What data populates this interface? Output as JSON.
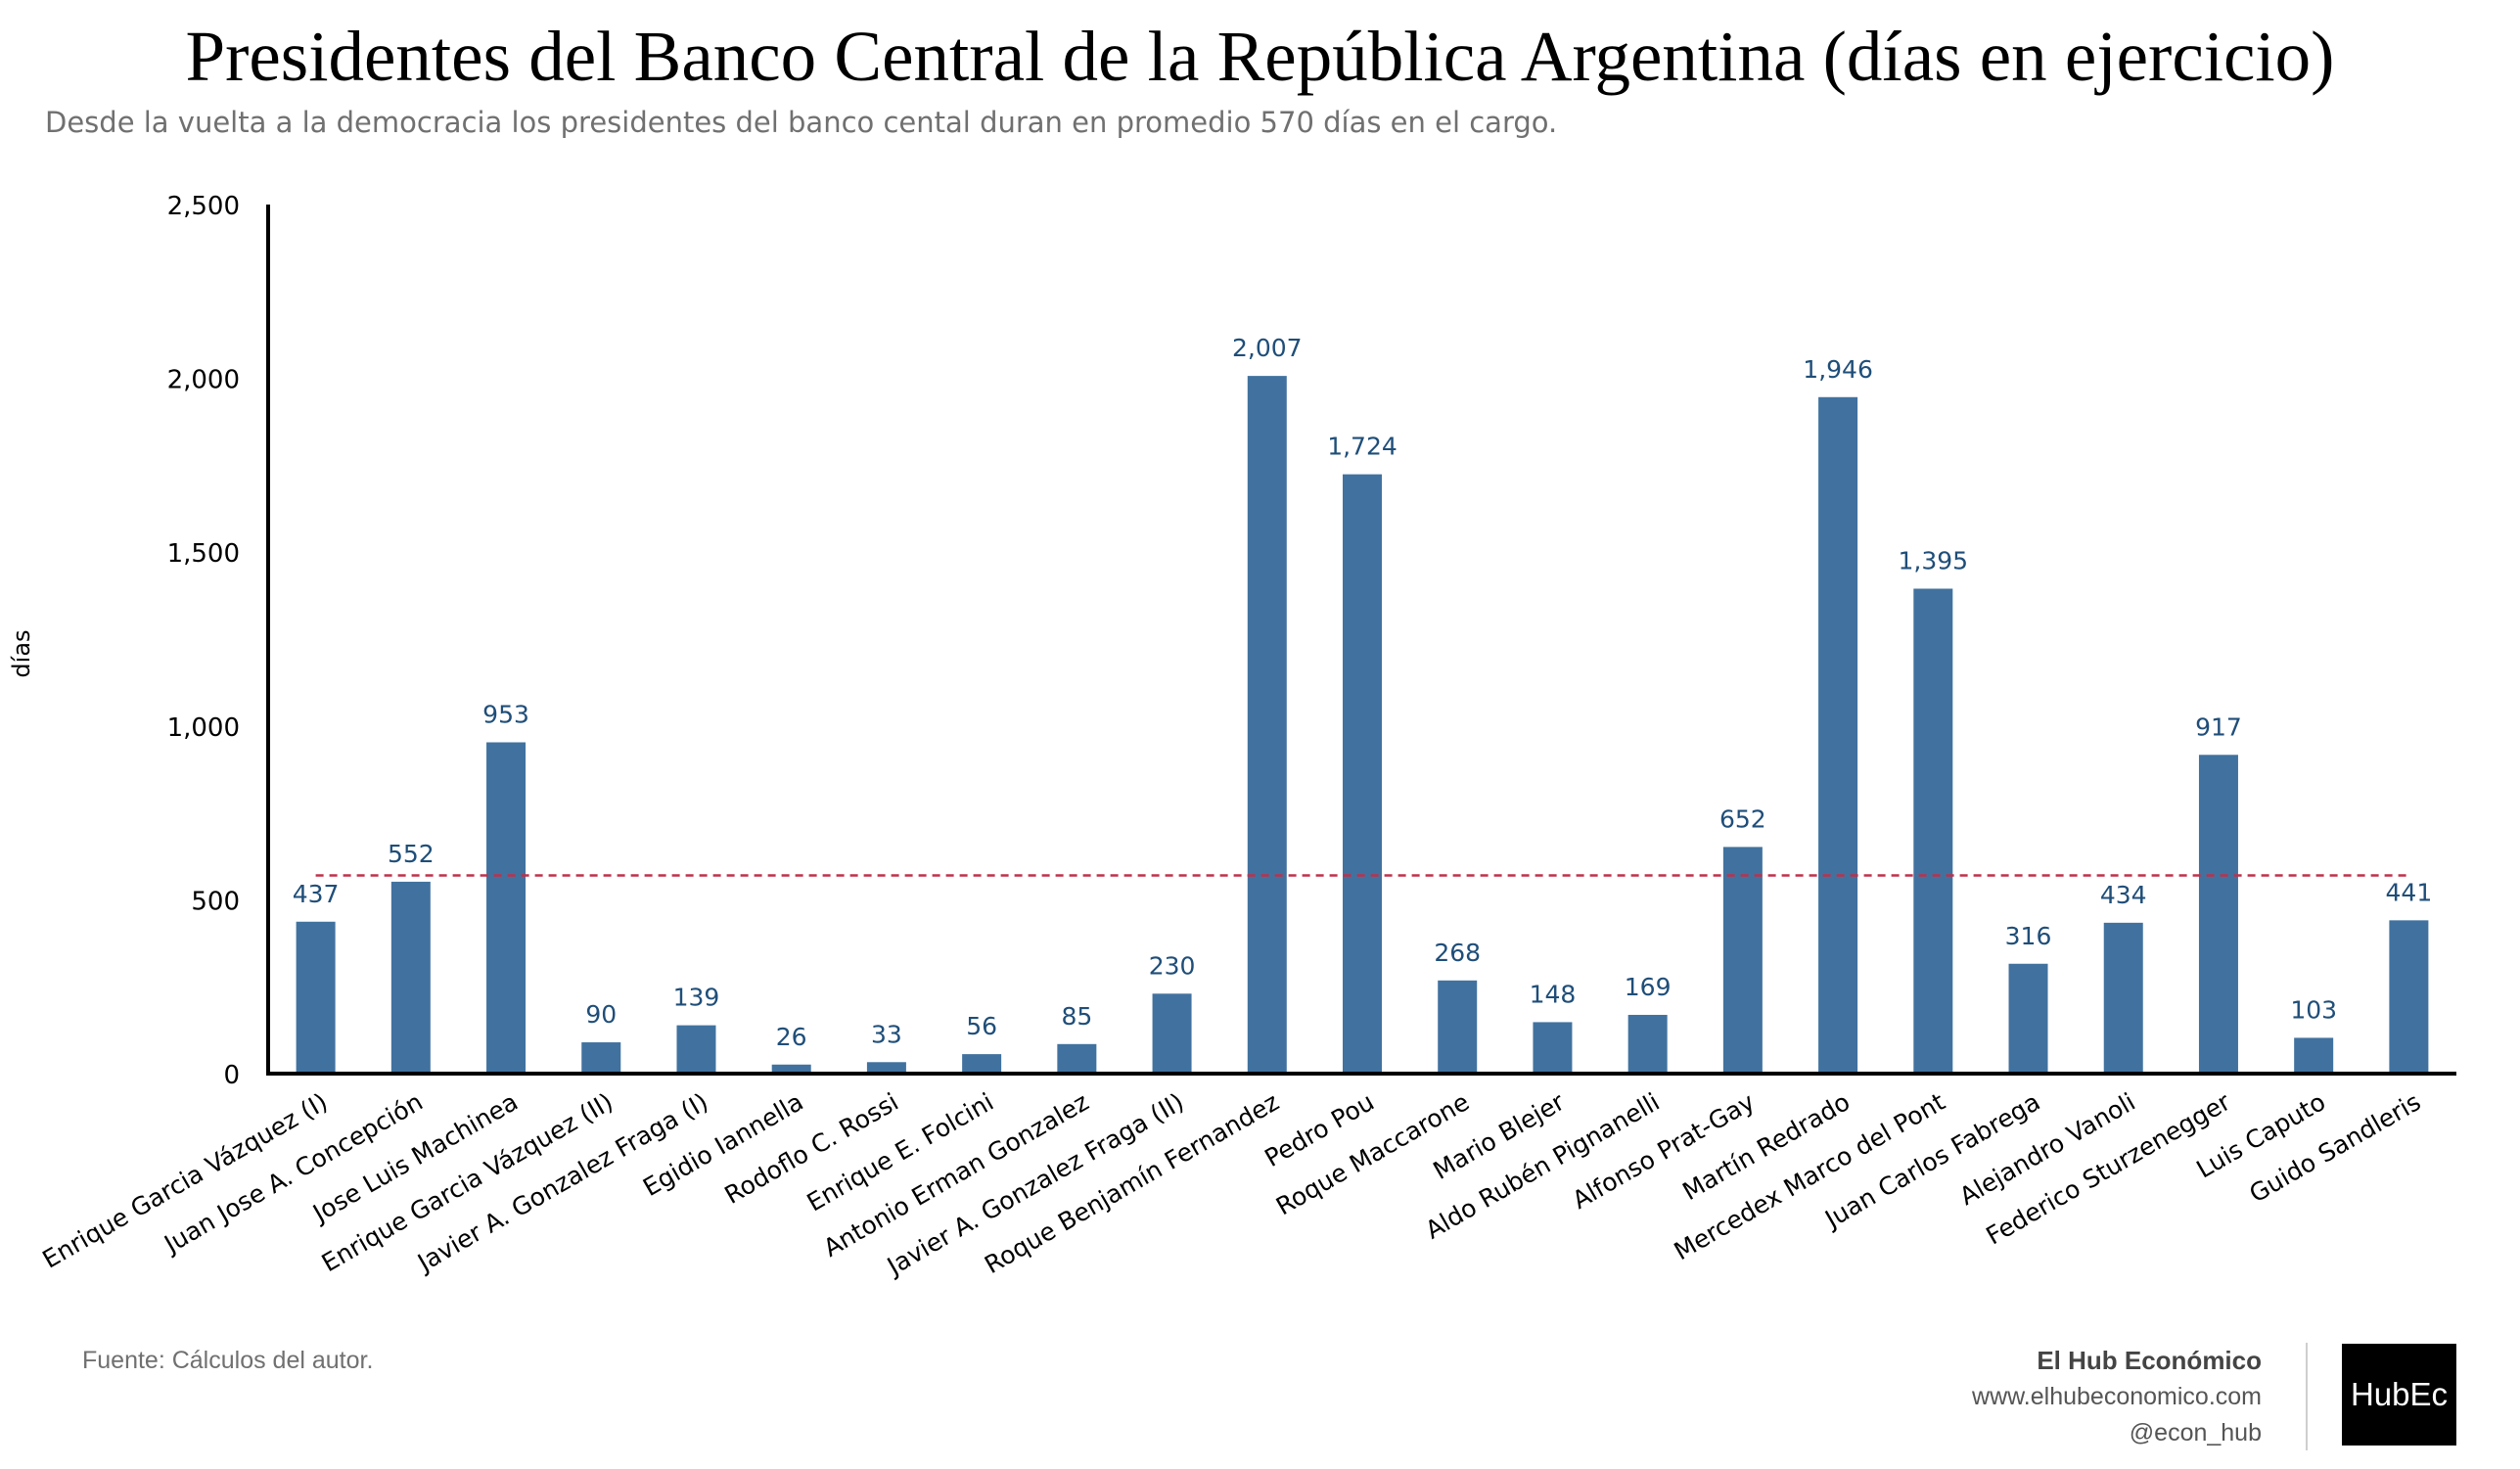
{
  "title": "Presidentes del Banco Central de la República Argentina (días en ejercicio)",
  "subtitle": "Desde la vuelta a la democracia los presidentes del banco cental duran en promedio 570 días en el cargo.",
  "footer": {
    "source": "Fuente: Cálculos del autor.",
    "brand_name": "El Hub Económico",
    "website": "www.elhubeconomico.com",
    "handle": "@econ_hub",
    "logo_text": "HubEc"
  },
  "colors": {
    "bar": "#41729f",
    "label": "#1f4e79",
    "average_line": "#c0304a",
    "axis": "#000000"
  },
  "chart_data": {
    "type": "bar",
    "ylabel": "días",
    "xlabel": "",
    "ylim": [
      0,
      2500
    ],
    "yticks": [
      0,
      500,
      1000,
      1500,
      2000,
      2500
    ],
    "ytick_labels": [
      "0",
      "500",
      "1,000",
      "1,500",
      "2,000",
      "2,500"
    ],
    "average": 570,
    "average_line_style": "dashed",
    "grid": false,
    "categories": [
      "Enrique Garcia Vázquez (I)",
      "Juan Jose A. Concepción",
      "Jose Luis Machinea",
      "Enrique Garcia Vázquez (II)",
      "Javier A. Gonzalez Fraga (I)",
      "Egidio Iannella",
      "Rodoflo C. Rossi",
      "Enrique E. Folcini",
      "Antonio Erman Gonzalez",
      "Javier A. Gonzalez Fraga (II)",
      "Roque Benjamín Fernandez",
      "Pedro Pou",
      "Roque Maccarone",
      "Mario Blejer",
      "Aldo Rubén Pignanelli",
      "Alfonso Prat-Gay",
      "Martín Redrado",
      "Mercedex Marco del Pont",
      "Juan Carlos Fabrega",
      "Alejandro Vanoli",
      "Federico Sturzenegger",
      "Luis Caputo",
      "Guido Sandleris"
    ],
    "values": [
      437,
      552,
      953,
      90,
      139,
      26,
      33,
      56,
      85,
      230,
      2007,
      1724,
      268,
      148,
      169,
      652,
      1946,
      1395,
      316,
      434,
      917,
      103,
      441
    ],
    "value_labels": [
      "437",
      "552",
      "953",
      "90",
      "139",
      "26",
      "33",
      "56",
      "85",
      "230",
      "2,007",
      "1,724",
      "268",
      "148",
      "169",
      "652",
      "1,946",
      "1,395",
      "316",
      "434",
      "917",
      "103",
      "441"
    ]
  }
}
